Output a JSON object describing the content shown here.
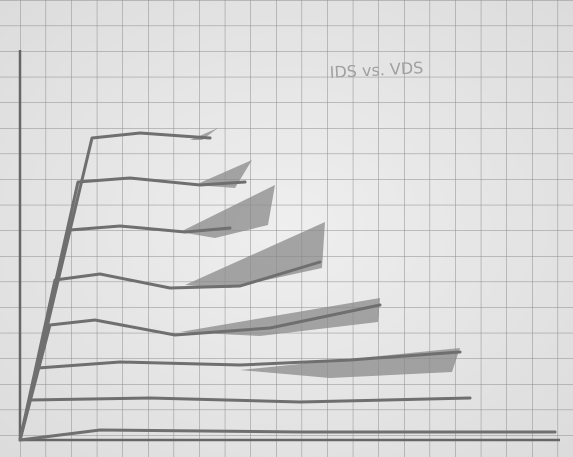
{
  "sketch": {
    "title": "IDS vs. VDS"
  }
}
